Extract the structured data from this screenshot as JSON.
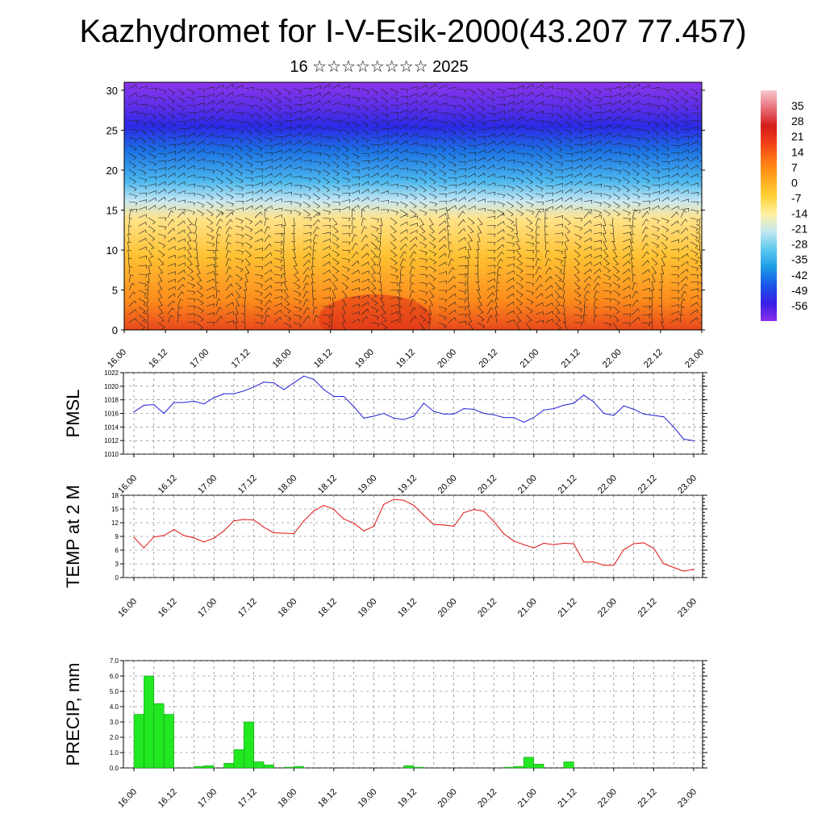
{
  "title": "Kazhydromet for I-V-Esik-2000(43.207 77.457)",
  "subtitle": "16 ☆☆☆☆☆☆☆☆ 2025",
  "colors": {
    "pmsl_line": "#1f1fd6",
    "temp_line": "#e01010",
    "precip_bar": "#22e822",
    "precip_bar_edge": "#0a8a0a"
  },
  "chart_data": [
    {
      "type": "heatmap",
      "id": "cross-section",
      "x_tick_labels": [
        "16.00",
        "16.12",
        "17.00",
        "17.12",
        "18.00",
        "18.12",
        "19.00",
        "19.12",
        "20.00",
        "20.12",
        "21.00",
        "21.12",
        "22.00",
        "22.12",
        "23.00"
      ],
      "y_ticks": [
        0,
        5,
        10,
        15,
        20,
        25,
        30
      ],
      "ylim": [
        0,
        31
      ],
      "colorbar_labels": [
        "35",
        "28",
        "21",
        "14",
        "7",
        "0",
        "-7",
        "-14",
        "-21",
        "-28",
        "-35",
        "-42",
        "-49",
        "-56"
      ],
      "colorbar_range": [
        -63,
        42
      ],
      "colorbar_colors": [
        "#8a30ea",
        "#3a1ee6",
        "#1a55e8",
        "#1a9ae6",
        "#5ac8f0",
        "#bfe6f0",
        "#fff2a6",
        "#ffd23a",
        "#ffa81e",
        "#ff7a12",
        "#f2401a",
        "#d41c1c",
        "#e8707a",
        "#f8c8cc"
      ],
      "wind_barbs": true
    },
    {
      "type": "line",
      "id": "pmsl",
      "ylabel": "PMSL",
      "ylim": [
        1010,
        1022
      ],
      "y_ticks": [
        1010,
        1012,
        1014,
        1016,
        1018,
        1020,
        1022
      ],
      "x_tick_labels": [
        "16.00",
        "16.12",
        "17.00",
        "17.12",
        "18.00",
        "18.12",
        "19.00",
        "19.12",
        "20.00",
        "20.12",
        "21.00",
        "21.12",
        "22.00",
        "22.12",
        "23.00"
      ],
      "x": [
        0,
        3,
        6,
        9,
        12,
        15,
        18,
        21,
        24,
        27,
        30,
        33,
        36,
        39,
        42,
        45,
        48,
        51,
        54,
        57,
        60,
        63,
        66,
        69,
        72,
        75,
        78,
        81,
        84,
        87,
        90,
        93,
        96,
        99,
        102,
        105,
        108,
        111,
        114,
        117,
        120,
        123,
        126,
        129,
        132,
        135,
        138,
        141,
        144,
        147,
        150,
        153,
        156,
        159,
        162,
        165,
        168
      ],
      "values": [
        1016.2,
        1017.2,
        1017.3,
        1016.0,
        1017.6,
        1017.6,
        1017.8,
        1017.4,
        1018.3,
        1018.9,
        1018.9,
        1019.3,
        1019.9,
        1020.6,
        1020.5,
        1019.5,
        1020.5,
        1021.5,
        1021.0,
        1019.5,
        1018.5,
        1018.5,
        1017.0,
        1015.3,
        1015.6,
        1016.0,
        1015.3,
        1015.1,
        1015.6,
        1017.5,
        1016.3,
        1015.9,
        1015.9,
        1016.7,
        1016.6,
        1016.0,
        1015.8,
        1015.4,
        1015.4,
        1014.7,
        1015.4,
        1016.5,
        1016.7,
        1017.2,
        1017.5,
        1018.7,
        1017.7,
        1016.0,
        1015.7,
        1017.1,
        1016.6,
        1015.9,
        1015.7,
        1015.5,
        1014.0,
        1012.2,
        1012.0
      ]
    },
    {
      "type": "line",
      "id": "temp",
      "ylabel": "TEMP at 2 M",
      "ylim": [
        0,
        18
      ],
      "y_ticks": [
        0,
        3,
        6,
        9,
        12,
        15,
        18
      ],
      "x_tick_labels": [
        "16.00",
        "16.12",
        "17.00",
        "17.12",
        "18.00",
        "18.12",
        "19.00",
        "19.12",
        "20.00",
        "20.12",
        "21.00",
        "21.12",
        "22.00",
        "22.12",
        "23.00"
      ],
      "x": [
        0,
        3,
        6,
        9,
        12,
        15,
        18,
        21,
        24,
        27,
        30,
        33,
        36,
        39,
        42,
        45,
        48,
        51,
        54,
        57,
        60,
        63,
        66,
        69,
        72,
        75,
        78,
        81,
        84,
        87,
        90,
        93,
        96,
        99,
        102,
        105,
        108,
        111,
        114,
        117,
        120,
        123,
        126,
        129,
        132,
        135,
        138,
        141,
        144,
        147,
        150,
        153,
        156,
        159,
        162,
        165,
        168
      ],
      "values": [
        8.8,
        6.5,
        8.9,
        9.2,
        10.5,
        9.2,
        8.7,
        7.8,
        8.6,
        10.2,
        12.4,
        12.7,
        12.6,
        11.0,
        9.8,
        9.7,
        9.6,
        12.4,
        14.6,
        15.8,
        14.9,
        12.8,
        11.9,
        10.2,
        11.2,
        16.0,
        17.1,
        16.9,
        15.8,
        13.6,
        11.6,
        11.5,
        11.2,
        14.2,
        14.9,
        14.5,
        12.3,
        9.6,
        8.0,
        7.2,
        6.5,
        7.5,
        7.2,
        7.5,
        7.4,
        3.4,
        3.4,
        2.7,
        2.7,
        6.1,
        7.4,
        7.6,
        6.4,
        3.0,
        2.2,
        1.4,
        1.8
      ]
    },
    {
      "type": "bar",
      "id": "precip",
      "ylabel": "PRECIP, mm",
      "ylim": [
        0,
        7
      ],
      "y_tick_labels": [
        "0.0",
        "1.0",
        "2.0",
        "3.0",
        "4.0",
        "5.0",
        "6.0",
        "7.0"
      ],
      "x_tick_labels": [
        "16.00",
        "16.12",
        "17.00",
        "17.12",
        "18.00",
        "18.12",
        "19.00",
        "19.12",
        "20.00",
        "20.12",
        "21.00",
        "21.12",
        "22.00",
        "22.12",
        "23.00"
      ],
      "x": [
        3,
        6,
        9,
        12,
        15,
        18,
        21,
        24,
        27,
        30,
        33,
        36,
        39,
        42,
        45,
        48,
        51,
        54,
        57,
        60,
        63,
        66,
        69,
        72,
        75,
        78,
        81,
        84,
        87,
        90,
        93,
        96,
        99,
        102,
        105,
        108,
        111,
        114,
        117,
        120,
        123,
        126,
        129,
        132,
        135,
        138,
        141,
        144,
        147,
        150,
        153,
        156,
        159,
        162,
        165,
        168
      ],
      "values": [
        3.5,
        6.0,
        4.2,
        3.5,
        0,
        0,
        0.1,
        0.15,
        0,
        0.3,
        1.2,
        3.0,
        0.4,
        0.2,
        0,
        0.05,
        0.1,
        0,
        0,
        0,
        0,
        0,
        0,
        0,
        0,
        0,
        0,
        0.15,
        0.05,
        0,
        0,
        0,
        0,
        0,
        0,
        0,
        0,
        0.05,
        0.1,
        0.7,
        0.25,
        0,
        0,
        0.4,
        0,
        0,
        0,
        0,
        0,
        0,
        0,
        0,
        0,
        0,
        0,
        0
      ]
    }
  ]
}
